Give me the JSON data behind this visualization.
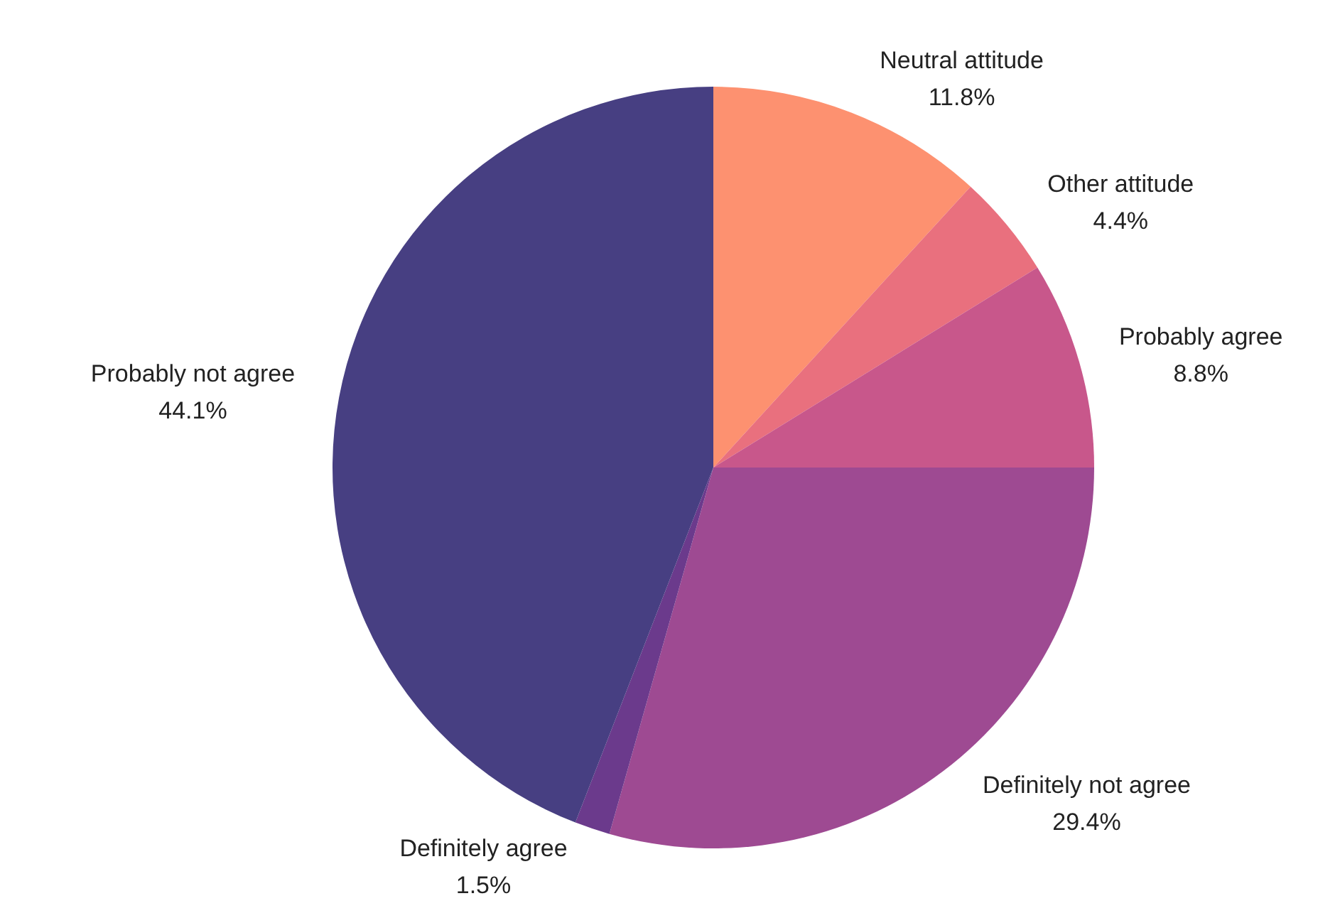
{
  "chart_data": {
    "type": "pie",
    "categories": [
      "Neutral attitude",
      "Other attitude",
      "Probably agree",
      "Definitely not agree",
      "Definitely agree",
      "Probably not agree"
    ],
    "values": [
      11.8,
      4.4,
      8.8,
      29.4,
      1.5,
      44.1
    ],
    "value_labels": [
      "11.8%",
      "4.4%",
      "8.8%",
      "29.4%",
      "1.5%",
      "44.1%"
    ],
    "colors": [
      "#fd9170",
      "#e9707e",
      "#c8578b",
      "#9e4a92",
      "#6b3a8c",
      "#473f82"
    ]
  }
}
